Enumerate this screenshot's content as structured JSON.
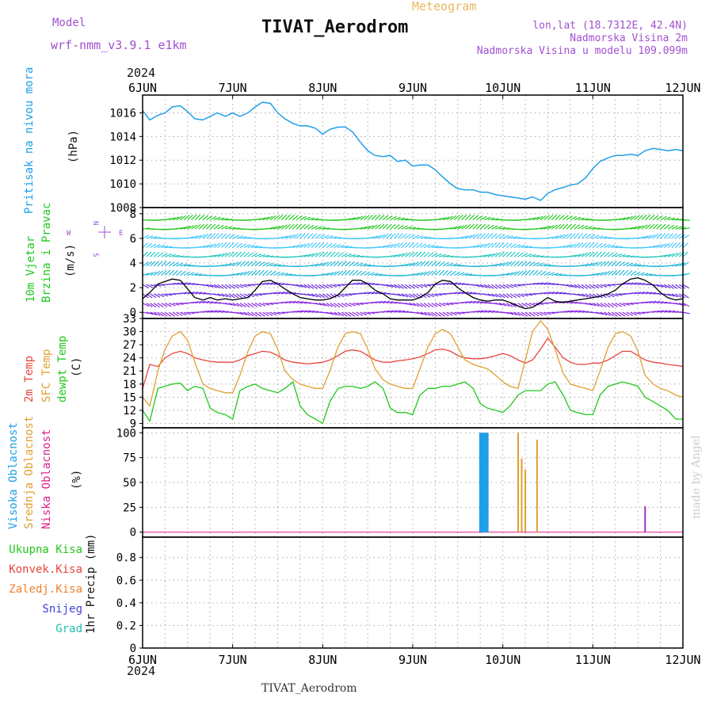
{
  "header": {
    "model_label": "Model",
    "model_name": "wrf-nmm_v3.9.1 e1km",
    "title": "TIVAT_Aerodrom",
    "subtitle": "Meteogram",
    "lonlat": "lon,lat (18.7312E, 42.4N)",
    "elev_station": "Nadmorska Visina 2m",
    "elev_model": "Nadmorska Visina u modelu 109.099m",
    "year_top": "2024",
    "footer_year": "2024",
    "footer_station": "TIVAT_Aerodrom",
    "credit": "made by Angel"
  },
  "colors": {
    "pressure": "#1f9fe8",
    "temp2m": "#e8453c",
    "sfc_temp": "#e0a030",
    "dewpoint": "#22c81e",
    "wind_black": "#000000",
    "high_cloud": "#1f9fe8",
    "mid_cloud": "#e0a030",
    "low_cloud": "#a030c8",
    "purple_text": "#a050d0"
  },
  "x_axis": {
    "labels": [
      "6JUN",
      "7JUN",
      "8JUN",
      "9JUN",
      "10JUN",
      "11JUN",
      "12JUN"
    ],
    "day_start": 6,
    "day_end": 12
  },
  "compass": {
    "n": "N",
    "s": "S",
    "w": "W",
    "e": "E"
  },
  "chart_data": [
    {
      "type": "line",
      "panel": "pressure",
      "ylabels": [
        "Pritisak na nivou mora",
        "(hPa)"
      ],
      "yticks": [
        1008,
        1010,
        1012,
        1014,
        1016
      ],
      "ylim": [
        1008,
        1017.5
      ],
      "grid": true,
      "series": [
        {
          "x": [
            6.0,
            6.08,
            6.17,
            6.25,
            6.33,
            6.42,
            6.5,
            6.58,
            6.67,
            6.75,
            6.83,
            6.92,
            7.0,
            7.08,
            7.17,
            7.25,
            7.33,
            7.42,
            7.5,
            7.58,
            7.67,
            7.75,
            7.83,
            7.92,
            8.0,
            8.08,
            8.17,
            8.25,
            8.33,
            8.42,
            8.5,
            8.58,
            8.67,
            8.75,
            8.83,
            8.92,
            9.0,
            9.08,
            9.17,
            9.25,
            9.33,
            9.42,
            9.5,
            9.58,
            9.67,
            9.75,
            9.83,
            9.92,
            10.0,
            10.08,
            10.17,
            10.25,
            10.33,
            10.42,
            10.5,
            10.58,
            10.67,
            10.75,
            10.83,
            10.92,
            11.0,
            11.08,
            11.17,
            11.25,
            11.33,
            11.42,
            11.5,
            11.58,
            11.67,
            11.75,
            11.83,
            11.92,
            12.0
          ],
          "y": [
            1016.2,
            1015.4,
            1015.8,
            1016.0,
            1016.5,
            1016.6,
            1016.1,
            1015.5,
            1015.4,
            1015.7,
            1016.0,
            1015.7,
            1016.0,
            1015.7,
            1016.0,
            1016.5,
            1016.9,
            1016.8,
            1016.0,
            1015.5,
            1015.1,
            1014.9,
            1014.9,
            1014.7,
            1014.2,
            1014.6,
            1014.8,
            1014.8,
            1014.4,
            1013.5,
            1012.8,
            1012.4,
            1012.3,
            1012.4,
            1011.9,
            1012.0,
            1011.5,
            1011.6,
            1011.6,
            1011.2,
            1010.6,
            1010.0,
            1009.6,
            1009.5,
            1009.5,
            1009.3,
            1009.3,
            1009.1,
            1009.0,
            1008.9,
            1008.8,
            1008.7,
            1008.9,
            1008.6,
            1009.2,
            1009.5,
            1009.7,
            1009.9,
            1010.0,
            1010.5,
            1011.3,
            1011.9,
            1012.2,
            1012.4,
            1012.4,
            1012.5,
            1012.4,
            1012.8,
            1013.0,
            1012.9,
            1012.8,
            1012.9,
            1012.8
          ]
        }
      ]
    },
    {
      "type": "line",
      "panel": "wind",
      "ylabels": [
        "10m Vjetar",
        "Brzina i Pravac",
        "(m/s)"
      ],
      "yticks": [
        0,
        2,
        4,
        6,
        8
      ],
      "ylim": [
        -0.5,
        8.5
      ],
      "grid": true,
      "series": [
        {
          "x": [
            6.0,
            6.08,
            6.17,
            6.25,
            6.33,
            6.42,
            6.5,
            6.58,
            6.67,
            6.75,
            6.83,
            6.92,
            7.0,
            7.08,
            7.17,
            7.25,
            7.33,
            7.42,
            7.5,
            7.58,
            7.67,
            7.75,
            7.83,
            7.92,
            8.0,
            8.08,
            8.17,
            8.25,
            8.33,
            8.42,
            8.5,
            8.58,
            8.67,
            8.75,
            8.83,
            8.92,
            9.0,
            9.08,
            9.17,
            9.25,
            9.33,
            9.42,
            9.5,
            9.58,
            9.67,
            9.75,
            9.83,
            9.92,
            10.0,
            10.08,
            10.17,
            10.25,
            10.33,
            10.42,
            10.5,
            10.58,
            10.67,
            10.75,
            10.83,
            10.92,
            11.0,
            11.08,
            11.17,
            11.25,
            11.33,
            11.42,
            11.5,
            11.58,
            11.67,
            11.75,
            11.83,
            11.92,
            12.0
          ],
          "y": [
            1.1,
            1.6,
            2.3,
            2.5,
            2.7,
            2.6,
            1.9,
            1.2,
            1.0,
            1.2,
            1.0,
            1.1,
            1.0,
            1.1,
            1.2,
            1.8,
            2.5,
            2.6,
            2.3,
            1.9,
            1.5,
            1.2,
            1.1,
            1.0,
            1.0,
            1.1,
            1.4,
            2.0,
            2.6,
            2.6,
            2.3,
            1.8,
            1.5,
            1.1,
            1.0,
            1.0,
            1.0,
            1.2,
            1.6,
            2.3,
            2.6,
            2.5,
            2.0,
            1.6,
            1.2,
            1.0,
            0.9,
            1.0,
            1.0,
            0.8,
            0.5,
            0.3,
            0.4,
            0.8,
            1.2,
            0.9,
            0.8,
            0.9,
            1.0,
            1.1,
            1.2,
            1.3,
            1.5,
            1.8,
            2.3,
            2.7,
            2.8,
            2.6,
            2.2,
            1.6,
            1.2,
            1.0,
            1.1
          ]
        }
      ]
    },
    {
      "type": "line",
      "panel": "temperature",
      "ylabels": [
        "2m Temp",
        "SFC Temp",
        "dewpt Temp",
        "(C)"
      ],
      "yticks": [
        9,
        12,
        15,
        18,
        21,
        24,
        27,
        30,
        33
      ],
      "ylim": [
        8,
        33
      ],
      "grid": true,
      "x": [
        6.0,
        6.08,
        6.17,
        6.25,
        6.33,
        6.42,
        6.5,
        6.58,
        6.67,
        6.75,
        6.83,
        6.92,
        7.0,
        7.08,
        7.17,
        7.25,
        7.33,
        7.42,
        7.5,
        7.58,
        7.67,
        7.75,
        7.83,
        7.92,
        8.0,
        8.08,
        8.17,
        8.25,
        8.33,
        8.42,
        8.5,
        8.58,
        8.67,
        8.75,
        8.83,
        8.92,
        9.0,
        9.08,
        9.17,
        9.25,
        9.33,
        9.42,
        9.5,
        9.58,
        9.67,
        9.75,
        9.83,
        9.92,
        10.0,
        10.08,
        10.17,
        10.25,
        10.33,
        10.42,
        10.5,
        10.58,
        10.67,
        10.75,
        10.83,
        10.92,
        11.0,
        11.08,
        11.17,
        11.25,
        11.33,
        11.42,
        11.5,
        11.58,
        11.67,
        11.75,
        11.83,
        11.92,
        12.0
      ],
      "series": [
        {
          "name": "2m Temp",
          "y": [
            17.0,
            22.5,
            22.0,
            24.0,
            25.0,
            25.5,
            25.0,
            24.0,
            23.5,
            23.2,
            23.0,
            23.0,
            23.0,
            23.5,
            24.5,
            25.0,
            25.5,
            25.3,
            24.5,
            23.5,
            23.0,
            22.8,
            22.6,
            22.8,
            23.0,
            23.5,
            24.5,
            25.5,
            25.8,
            25.5,
            24.5,
            23.5,
            23.0,
            23.0,
            23.3,
            23.5,
            23.8,
            24.2,
            25.0,
            25.8,
            26.0,
            25.5,
            24.5,
            24.0,
            23.8,
            23.8,
            24.0,
            24.5,
            25.0,
            24.5,
            23.5,
            22.8,
            23.5,
            26.0,
            28.5,
            26.5,
            24.0,
            23.0,
            22.5,
            22.5,
            22.8,
            22.8,
            23.5,
            24.5,
            25.5,
            25.5,
            24.5,
            23.5,
            23.0,
            22.8,
            22.5,
            22.3,
            22.0
          ]
        },
        {
          "name": "SFC Temp",
          "y": [
            15.0,
            13.0,
            21.0,
            26.0,
            29.0,
            30.0,
            28.0,
            23.0,
            18.0,
            17.0,
            16.5,
            16.0,
            16.0,
            20.0,
            25.5,
            29.0,
            30.0,
            29.5,
            26.0,
            21.0,
            19.0,
            18.0,
            17.5,
            17.0,
            17.0,
            21.0,
            26.5,
            29.5,
            30.0,
            29.5,
            26.0,
            21.5,
            19.0,
            18.0,
            17.5,
            17.0,
            17.0,
            21.5,
            26.5,
            29.5,
            30.5,
            29.5,
            26.5,
            23.5,
            22.5,
            22.0,
            21.5,
            20.0,
            18.5,
            17.5,
            17.0,
            23.5,
            30.0,
            32.5,
            30.5,
            26.0,
            20.5,
            18.0,
            17.5,
            17.0,
            16.5,
            21.0,
            26.5,
            29.5,
            30.0,
            29.0,
            25.5,
            20.0,
            18.0,
            17.0,
            16.5,
            15.5,
            15.0
          ]
        },
        {
          "name": "dewpt Temp",
          "y": [
            12.0,
            9.5,
            17.0,
            17.5,
            18.0,
            18.2,
            16.5,
            17.5,
            17.0,
            12.5,
            11.5,
            11.0,
            10.0,
            16.5,
            17.5,
            18.0,
            17.0,
            16.5,
            16.0,
            17.0,
            18.5,
            13.0,
            11.0,
            10.0,
            9.0,
            14.0,
            17.0,
            17.5,
            17.5,
            17.0,
            17.5,
            18.5,
            17.0,
            12.5,
            11.5,
            11.5,
            11.0,
            15.5,
            17.0,
            17.0,
            17.5,
            17.5,
            18.0,
            18.5,
            17.0,
            13.5,
            12.5,
            12.0,
            11.5,
            13.0,
            15.5,
            16.5,
            16.5,
            16.5,
            18.0,
            18.5,
            15.5,
            12.0,
            11.5,
            11.0,
            11.0,
            15.5,
            17.5,
            18.0,
            18.5,
            18.0,
            17.5,
            15.0,
            14.0,
            13.0,
            12.0,
            10.0,
            10.0
          ]
        }
      ]
    },
    {
      "type": "bar",
      "panel": "cloud",
      "ylabels": [
        "Visoka Oblacnost",
        "Srednja Oblacnost",
        "Niska Oblacnost",
        "(%)"
      ],
      "yticks": [
        0,
        25,
        50,
        75,
        100
      ],
      "ylim": [
        -5,
        105
      ],
      "grid": true,
      "series": [
        {
          "name": "Visoka Oblacnost",
          "x": [
            9.76,
            9.79,
            9.82
          ],
          "y": [
            100,
            100,
            100
          ]
        },
        {
          "name": "Srednja Oblacnost",
          "x": [
            10.17,
            10.21,
            10.25,
            10.38
          ],
          "y": [
            100,
            74,
            63,
            93
          ]
        },
        {
          "name": "Niska Oblacnost",
          "x": [
            11.58
          ],
          "y": [
            26
          ]
        }
      ]
    },
    {
      "type": "bar",
      "panel": "precip",
      "ylabels": [
        "1hr Precip (mm)"
      ],
      "legend": [
        "Ukupna Kisa",
        "Konvek.Kisa",
        "Zaledj.Kisa",
        "Snijeg",
        "Grad"
      ],
      "legend_colors": [
        "#22c81e",
        "#e8453c",
        "#f08030",
        "#4040e0",
        "#20c0b0"
      ],
      "yticks": [
        0,
        0.2,
        0.4,
        0.6,
        0.8
      ],
      "ylim": [
        0,
        0.98
      ],
      "grid": true,
      "series": []
    }
  ]
}
